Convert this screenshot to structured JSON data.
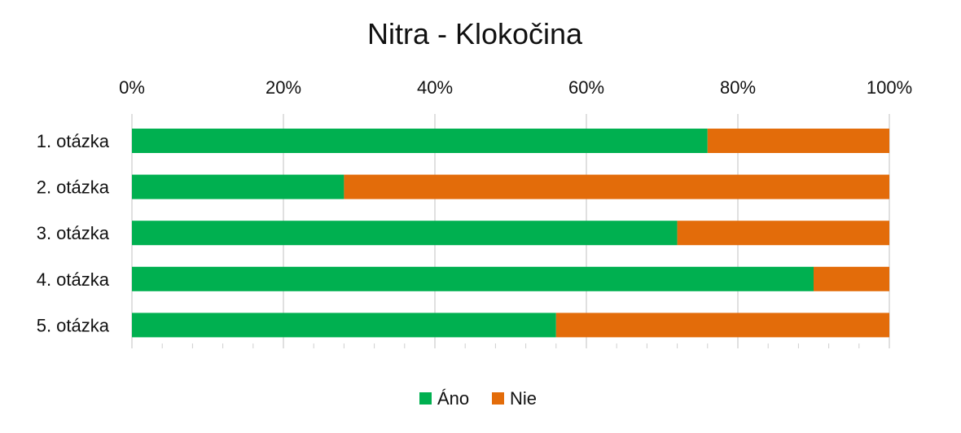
{
  "chart_data": {
    "type": "bar",
    "orientation": "horizontal",
    "stacked": "percent",
    "title": "Nitra - Klokočina",
    "categories": [
      "1. otázka",
      "2. otázka",
      "3. otázka",
      "4. otázka",
      "5. otázka"
    ],
    "series": [
      {
        "name": "Áno",
        "color": "#00b050",
        "values": [
          76,
          28,
          72,
          90,
          56
        ]
      },
      {
        "name": "Nie",
        "color": "#e36c0a",
        "values": [
          24,
          72,
          28,
          10,
          44
        ]
      }
    ],
    "xlim": [
      0,
      100
    ],
    "ticks": [
      "0%",
      "20%",
      "40%",
      "60%",
      "80%",
      "100%"
    ],
    "axis_position": "top",
    "grid": true,
    "legend": "bottom"
  }
}
